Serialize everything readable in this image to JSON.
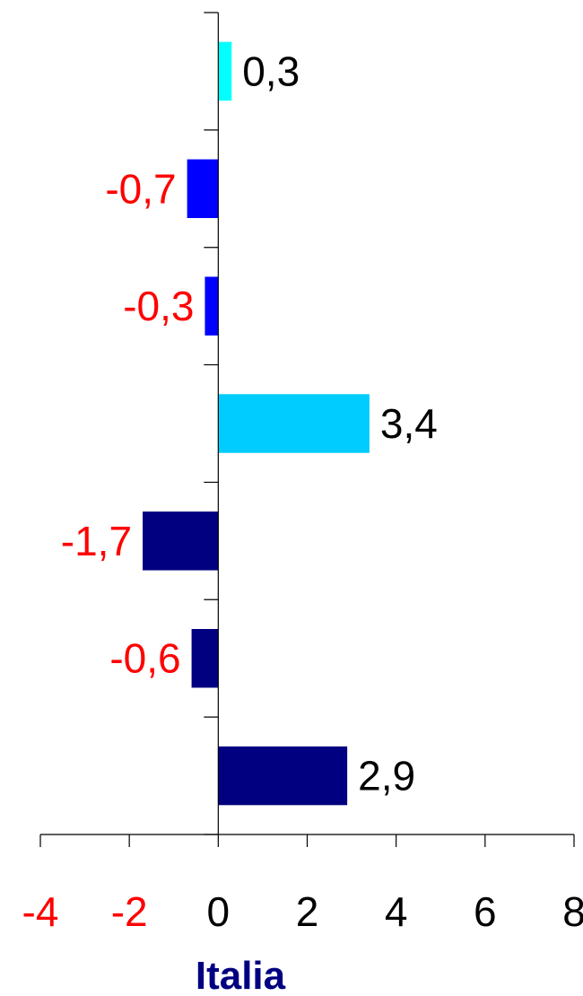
{
  "chart_data": {
    "type": "bar",
    "orientation": "horizontal",
    "values": [
      0.3,
      -0.7,
      -0.3,
      3.4,
      -1.7,
      -0.6,
      2.9
    ],
    "value_labels": [
      "0,3",
      "-0,7",
      "-0,3",
      "3,4",
      "-1,7",
      "-0,6",
      "2,9"
    ],
    "bar_colors": [
      "#00FFFF",
      "#0000FF",
      "#0000FF",
      "#00CCFF",
      "#000080",
      "#000080",
      "#000080"
    ],
    "xlim": [
      -4,
      8
    ],
    "xticks": [
      -4,
      -2,
      0,
      2,
      4,
      6,
      8
    ],
    "xtick_labels": [
      "-4",
      "-2",
      "0",
      "2",
      "4",
      "6",
      "8"
    ],
    "xlabel": "Italia",
    "grid": false,
    "colors": {
      "positive_text": "#000000",
      "negative_text": "#FF0000",
      "xlabel": "#000080",
      "axis": "#000000"
    }
  }
}
